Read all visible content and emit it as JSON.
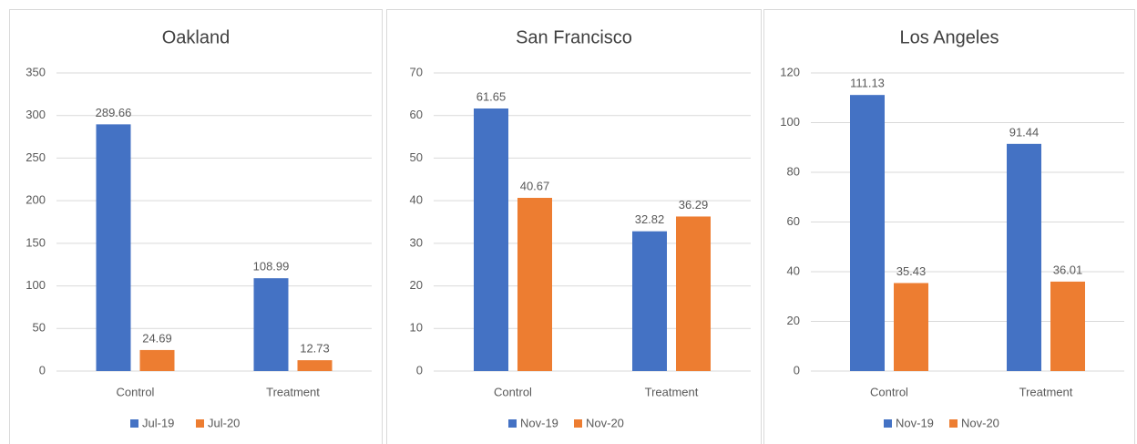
{
  "chart_data": [
    {
      "type": "bar",
      "title": "Oakland",
      "categories": [
        "Control",
        "Treatment"
      ],
      "series": [
        {
          "name": "Jul-19",
          "color": "#4472c4",
          "values": [
            289.66,
            108.99
          ]
        },
        {
          "name": "Jul-20",
          "color": "#ed7d31",
          "values": [
            24.69,
            12.73
          ]
        }
      ],
      "ylim": [
        0,
        350
      ],
      "yticks": [
        0,
        50,
        100,
        150,
        200,
        250,
        300,
        350
      ],
      "grid": true,
      "legend": "bottom"
    },
    {
      "type": "bar",
      "title": "San Francisco",
      "categories": [
        "Control",
        "Treatment"
      ],
      "series": [
        {
          "name": "Nov-19",
          "color": "#4472c4",
          "values": [
            61.65,
            32.82
          ]
        },
        {
          "name": "Nov-20",
          "color": "#ed7d31",
          "values": [
            40.67,
            36.29
          ]
        }
      ],
      "ylim": [
        0,
        70
      ],
      "yticks": [
        0,
        10,
        20,
        30,
        40,
        50,
        60,
        70
      ],
      "grid": true,
      "legend": "bottom"
    },
    {
      "type": "bar",
      "title": "Los Angeles",
      "categories": [
        "Control",
        "Treatment"
      ],
      "series": [
        {
          "name": "Nov-19",
          "color": "#4472c4",
          "values": [
            111.13,
            91.44
          ]
        },
        {
          "name": "Nov-20",
          "color": "#ed7d31",
          "values": [
            35.43,
            36.01
          ]
        }
      ],
      "ylim": [
        0,
        120
      ],
      "yticks": [
        0,
        20,
        40,
        60,
        80,
        100,
        120
      ],
      "grid": true,
      "legend": "bottom"
    }
  ]
}
